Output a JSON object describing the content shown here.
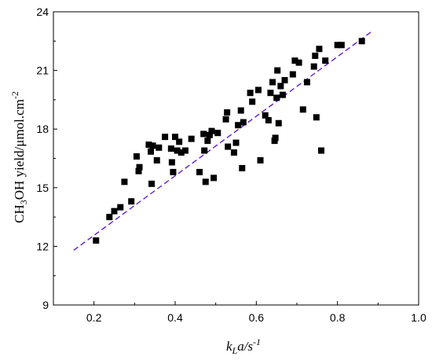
{
  "chart_data": {
    "type": "scatter",
    "xlabel_main": "k",
    "xlabel_sub": "L",
    "xlabel_rest": "a/s",
    "xlabel_sup": "-1",
    "ylabel_a": "CH",
    "ylabel_b": "3",
    "ylabel_c": "OH yield/μmol.cm",
    "ylabel_d": "-2",
    "xlim": [
      0.1,
      1.0
    ],
    "ylim": [
      9,
      24
    ],
    "x_ticks": [
      "0.2",
      "0.4",
      "0.6",
      "0.8",
      "1.0"
    ],
    "y_ticks": [
      "9",
      "12",
      "15",
      "18",
      "21",
      "24"
    ],
    "marker_color": "#000000",
    "fit_line": {
      "color": "#6a2bd6",
      "style": "dashed",
      "x": [
        0.15,
        0.885
      ],
      "y": [
        11.8,
        23.0
      ]
    },
    "points": [
      [
        0.205,
        12.3
      ],
      [
        0.238,
        13.5
      ],
      [
        0.25,
        13.8
      ],
      [
        0.265,
        14.0
      ],
      [
        0.275,
        15.3
      ],
      [
        0.292,
        14.3
      ],
      [
        0.305,
        16.6
      ],
      [
        0.31,
        15.85
      ],
      [
        0.312,
        16.05
      ],
      [
        0.335,
        17.2
      ],
      [
        0.34,
        16.85
      ],
      [
        0.342,
        15.2
      ],
      [
        0.345,
        17.15
      ],
      [
        0.355,
        16.4
      ],
      [
        0.36,
        17.05
      ],
      [
        0.375,
        17.6
      ],
      [
        0.39,
        17.0
      ],
      [
        0.392,
        16.3
      ],
      [
        0.395,
        15.8
      ],
      [
        0.4,
        17.6
      ],
      [
        0.405,
        16.9
      ],
      [
        0.41,
        17.35
      ],
      [
        0.415,
        16.8
      ],
      [
        0.425,
        16.9
      ],
      [
        0.44,
        17.5
      ],
      [
        0.46,
        15.8
      ],
      [
        0.47,
        17.75
      ],
      [
        0.472,
        16.9
      ],
      [
        0.475,
        15.3
      ],
      [
        0.48,
        17.4
      ],
      [
        0.485,
        17.7
      ],
      [
        0.49,
        17.9
      ],
      [
        0.495,
        15.5
      ],
      [
        0.505,
        17.8
      ],
      [
        0.525,
        18.5
      ],
      [
        0.528,
        18.85
      ],
      [
        0.53,
        17.1
      ],
      [
        0.545,
        16.8
      ],
      [
        0.55,
        17.3
      ],
      [
        0.555,
        18.2
      ],
      [
        0.562,
        18.95
      ],
      [
        0.565,
        16.0
      ],
      [
        0.568,
        18.35
      ],
      [
        0.585,
        19.85
      ],
      [
        0.59,
        19.4
      ],
      [
        0.605,
        20.0
      ],
      [
        0.61,
        16.4
      ],
      [
        0.622,
        18.7
      ],
      [
        0.63,
        18.45
      ],
      [
        0.635,
        19.85
      ],
      [
        0.64,
        20.4
      ],
      [
        0.645,
        17.4
      ],
      [
        0.647,
        17.55
      ],
      [
        0.65,
        19.6
      ],
      [
        0.652,
        21.0
      ],
      [
        0.655,
        18.3
      ],
      [
        0.66,
        20.2
      ],
      [
        0.665,
        19.75
      ],
      [
        0.67,
        20.5
      ],
      [
        0.69,
        20.8
      ],
      [
        0.695,
        21.5
      ],
      [
        0.705,
        21.4
      ],
      [
        0.715,
        19.0
      ],
      [
        0.725,
        20.4
      ],
      [
        0.742,
        21.2
      ],
      [
        0.745,
        21.75
      ],
      [
        0.748,
        18.6
      ],
      [
        0.755,
        22.1
      ],
      [
        0.76,
        16.9
      ],
      [
        0.77,
        21.5
      ],
      [
        0.8,
        22.3
      ],
      [
        0.81,
        22.3
      ],
      [
        0.86,
        22.5
      ]
    ]
  }
}
